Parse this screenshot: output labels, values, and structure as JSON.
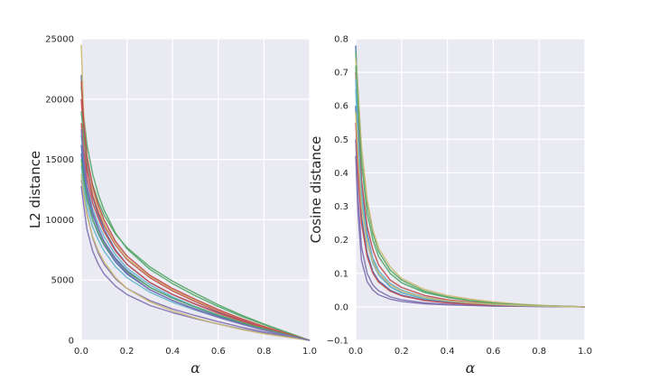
{
  "chart_data": [
    {
      "type": "line",
      "xlabel": "α",
      "ylabel": "L2 distance",
      "xlim": [
        0,
        1.0
      ],
      "ylim": [
        0,
        25000
      ],
      "xticks": [
        "0.0",
        "0.2",
        "0.4",
        "0.6",
        "0.8",
        "1.0"
      ],
      "yticks": [
        "0",
        "5000",
        "10000",
        "15000",
        "20000",
        "25000"
      ],
      "grid": true,
      "x": [
        0.0,
        0.01,
        0.025,
        0.05,
        0.075,
        0.1,
        0.15,
        0.2,
        0.3,
        0.4,
        0.5,
        0.6,
        0.7,
        0.8,
        0.9,
        1.0
      ],
      "series": [
        {
          "color": "#4c72b0",
          "values": [
            22000,
            17700,
            14400,
            11900,
            10400,
            9200,
            7500,
            6300,
            4800,
            3800,
            3000,
            2300,
            1700,
            1100,
            550,
            0
          ]
        },
        {
          "color": "#55a868",
          "values": [
            21000,
            18800,
            16200,
            13800,
            12100,
            10800,
            8900,
            7600,
            5900,
            4700,
            3700,
            2800,
            2000,
            1300,
            650,
            0
          ]
        },
        {
          "color": "#c44e52",
          "values": [
            20000,
            17000,
            14200,
            12000,
            10600,
            9500,
            7900,
            6700,
            5200,
            4100,
            3200,
            2400,
            1700,
            1100,
            550,
            0
          ]
        },
        {
          "color": "#8172b2",
          "values": [
            13300,
            12200,
            10500,
            8500,
            7200,
            6300,
            5100,
            4300,
            3300,
            2600,
            2050,
            1550,
            1100,
            700,
            350,
            0
          ]
        },
        {
          "color": "#ccb974",
          "values": [
            24500,
            19000,
            15000,
            12500,
            10900,
            9700,
            8000,
            6800,
            5300,
            4200,
            3300,
            2500,
            1800,
            1150,
            570,
            0
          ]
        },
        {
          "color": "#64b5cd",
          "values": [
            17000,
            15000,
            12900,
            10900,
            9600,
            8600,
            7100,
            6000,
            4600,
            3600,
            2800,
            2100,
            1500,
            950,
            470,
            0
          ]
        },
        {
          "color": "#4c72b0",
          "values": [
            15500,
            13700,
            11800,
            10000,
            8800,
            7900,
            6500,
            5500,
            4200,
            3300,
            2600,
            1950,
            1400,
            900,
            450,
            0
          ]
        },
        {
          "color": "#55a868",
          "values": [
            19000,
            17000,
            14900,
            12900,
            11500,
            10400,
            8800,
            7700,
            6100,
            4900,
            3900,
            2950,
            2100,
            1350,
            670,
            0
          ]
        },
        {
          "color": "#c44e52",
          "values": [
            18000,
            15800,
            13500,
            11400,
            10100,
            9000,
            7400,
            6300,
            4800,
            3800,
            3000,
            2250,
            1600,
            1000,
            500,
            0
          ]
        },
        {
          "color": "#8172b2",
          "values": [
            12800,
            11300,
            9200,
            7400,
            6300,
            5500,
            4500,
            3800,
            2900,
            2300,
            1800,
            1350,
            950,
            600,
            300,
            0
          ]
        },
        {
          "color": "#ccb974",
          "values": [
            13800,
            12200,
            10400,
            8600,
            7400,
            6500,
            5200,
            4300,
            3200,
            2450,
            1850,
            1350,
            900,
            550,
            270,
            0
          ]
        },
        {
          "color": "#64b5cd",
          "values": [
            14500,
            12900,
            11100,
            9400,
            8300,
            7400,
            6100,
            5200,
            4000,
            3150,
            2500,
            1900,
            1350,
            850,
            420,
            0
          ]
        },
        {
          "color": "#4c72b0",
          "values": [
            16200,
            14300,
            12300,
            10400,
            9200,
            8200,
            6800,
            5800,
            4400,
            3500,
            2750,
            2050,
            1450,
            930,
            460,
            0
          ]
        },
        {
          "color": "#c44e52",
          "values": [
            21500,
            18300,
            15300,
            12800,
            11200,
            10000,
            8200,
            7000,
            5400,
            4300,
            3400,
            2550,
            1800,
            1150,
            570,
            0
          ]
        },
        {
          "color": "#55a868",
          "values": [
            15000,
            13400,
            11700,
            10000,
            8900,
            8000,
            6700,
            5700,
            4400,
            3500,
            2750,
            2100,
            1500,
            950,
            470,
            0
          ]
        },
        {
          "color": "#8172b2",
          "values": [
            17500,
            15200,
            12800,
            10600,
            9300,
            8200,
            6700,
            5600,
            4200,
            3300,
            2550,
            1900,
            1350,
            850,
            420,
            0
          ]
        }
      ]
    },
    {
      "type": "line",
      "xlabel": "α",
      "ylabel": "Cosine distance",
      "xlim": [
        0,
        1.0
      ],
      "ylim": [
        -0.1,
        0.8
      ],
      "xticks": [
        "0.0",
        "0.2",
        "0.4",
        "0.6",
        "0.8",
        "1.0"
      ],
      "yticks": [
        "−0.1",
        "0.0",
        "0.1",
        "0.2",
        "0.3",
        "0.4",
        "0.5",
        "0.6",
        "0.7",
        "0.8"
      ],
      "grid": true,
      "x": [
        0.0,
        0.01,
        0.025,
        0.05,
        0.075,
        0.1,
        0.15,
        0.2,
        0.3,
        0.4,
        0.5,
        0.6,
        0.7,
        0.8,
        0.9,
        1.0
      ],
      "series": [
        {
          "color": "#4c72b0",
          "values": [
            0.78,
            0.6,
            0.38,
            0.22,
            0.14,
            0.1,
            0.06,
            0.042,
            0.024,
            0.015,
            0.01,
            0.006,
            0.004,
            0.002,
            0.001,
            0
          ]
        },
        {
          "color": "#55a868",
          "values": [
            0.76,
            0.65,
            0.47,
            0.31,
            0.22,
            0.165,
            0.11,
            0.08,
            0.047,
            0.03,
            0.019,
            0.012,
            0.007,
            0.004,
            0.002,
            0
          ]
        },
        {
          "color": "#c44e52",
          "values": [
            0.7,
            0.56,
            0.38,
            0.24,
            0.17,
            0.125,
            0.08,
            0.058,
            0.034,
            0.021,
            0.014,
            0.009,
            0.005,
            0.003,
            0.001,
            0
          ]
        },
        {
          "color": "#8172b2",
          "values": [
            0.5,
            0.33,
            0.18,
            0.1,
            0.065,
            0.048,
            0.03,
            0.021,
            0.012,
            0.008,
            0.005,
            0.003,
            0.002,
            0.001,
            0.0005,
            0
          ]
        },
        {
          "color": "#ccb974",
          "values": [
            0.74,
            0.64,
            0.48,
            0.32,
            0.23,
            0.175,
            0.12,
            0.085,
            0.052,
            0.034,
            0.023,
            0.015,
            0.009,
            0.005,
            0.002,
            0
          ]
        },
        {
          "color": "#64b5cd",
          "values": [
            0.65,
            0.5,
            0.32,
            0.19,
            0.13,
            0.095,
            0.06,
            0.042,
            0.024,
            0.015,
            0.01,
            0.006,
            0.004,
            0.002,
            0.001,
            0
          ]
        },
        {
          "color": "#4c72b0",
          "values": [
            0.6,
            0.44,
            0.27,
            0.16,
            0.105,
            0.078,
            0.05,
            0.035,
            0.02,
            0.013,
            0.008,
            0.005,
            0.003,
            0.002,
            0.001,
            0
          ]
        },
        {
          "color": "#8172b2",
          "values": [
            0.45,
            0.28,
            0.14,
            0.075,
            0.05,
            0.036,
            0.023,
            0.016,
            0.009,
            0.006,
            0.004,
            0.002,
            0.0015,
            0.001,
            0.0005,
            0
          ]
        },
        {
          "color": "#55a868",
          "values": [
            0.72,
            0.6,
            0.43,
            0.28,
            0.2,
            0.15,
            0.1,
            0.072,
            0.043,
            0.028,
            0.018,
            0.011,
            0.007,
            0.004,
            0.002,
            0
          ]
        },
        {
          "color": "#c44e52",
          "values": [
            0.55,
            0.4,
            0.25,
            0.15,
            0.1,
            0.074,
            0.047,
            0.033,
            0.019,
            0.012,
            0.008,
            0.005,
            0.003,
            0.002,
            0.001,
            0
          ]
        },
        {
          "color": "#64b5cd",
          "values": [
            0.68,
            0.52,
            0.34,
            0.21,
            0.145,
            0.108,
            0.07,
            0.05,
            0.029,
            0.018,
            0.012,
            0.007,
            0.004,
            0.002,
            0.001,
            0
          ]
        },
        {
          "color": "#ccb974",
          "values": [
            0.58,
            0.45,
            0.3,
            0.19,
            0.135,
            0.1,
            0.066,
            0.047,
            0.028,
            0.018,
            0.012,
            0.008,
            0.005,
            0.003,
            0.001,
            0
          ]
        }
      ]
    }
  ]
}
